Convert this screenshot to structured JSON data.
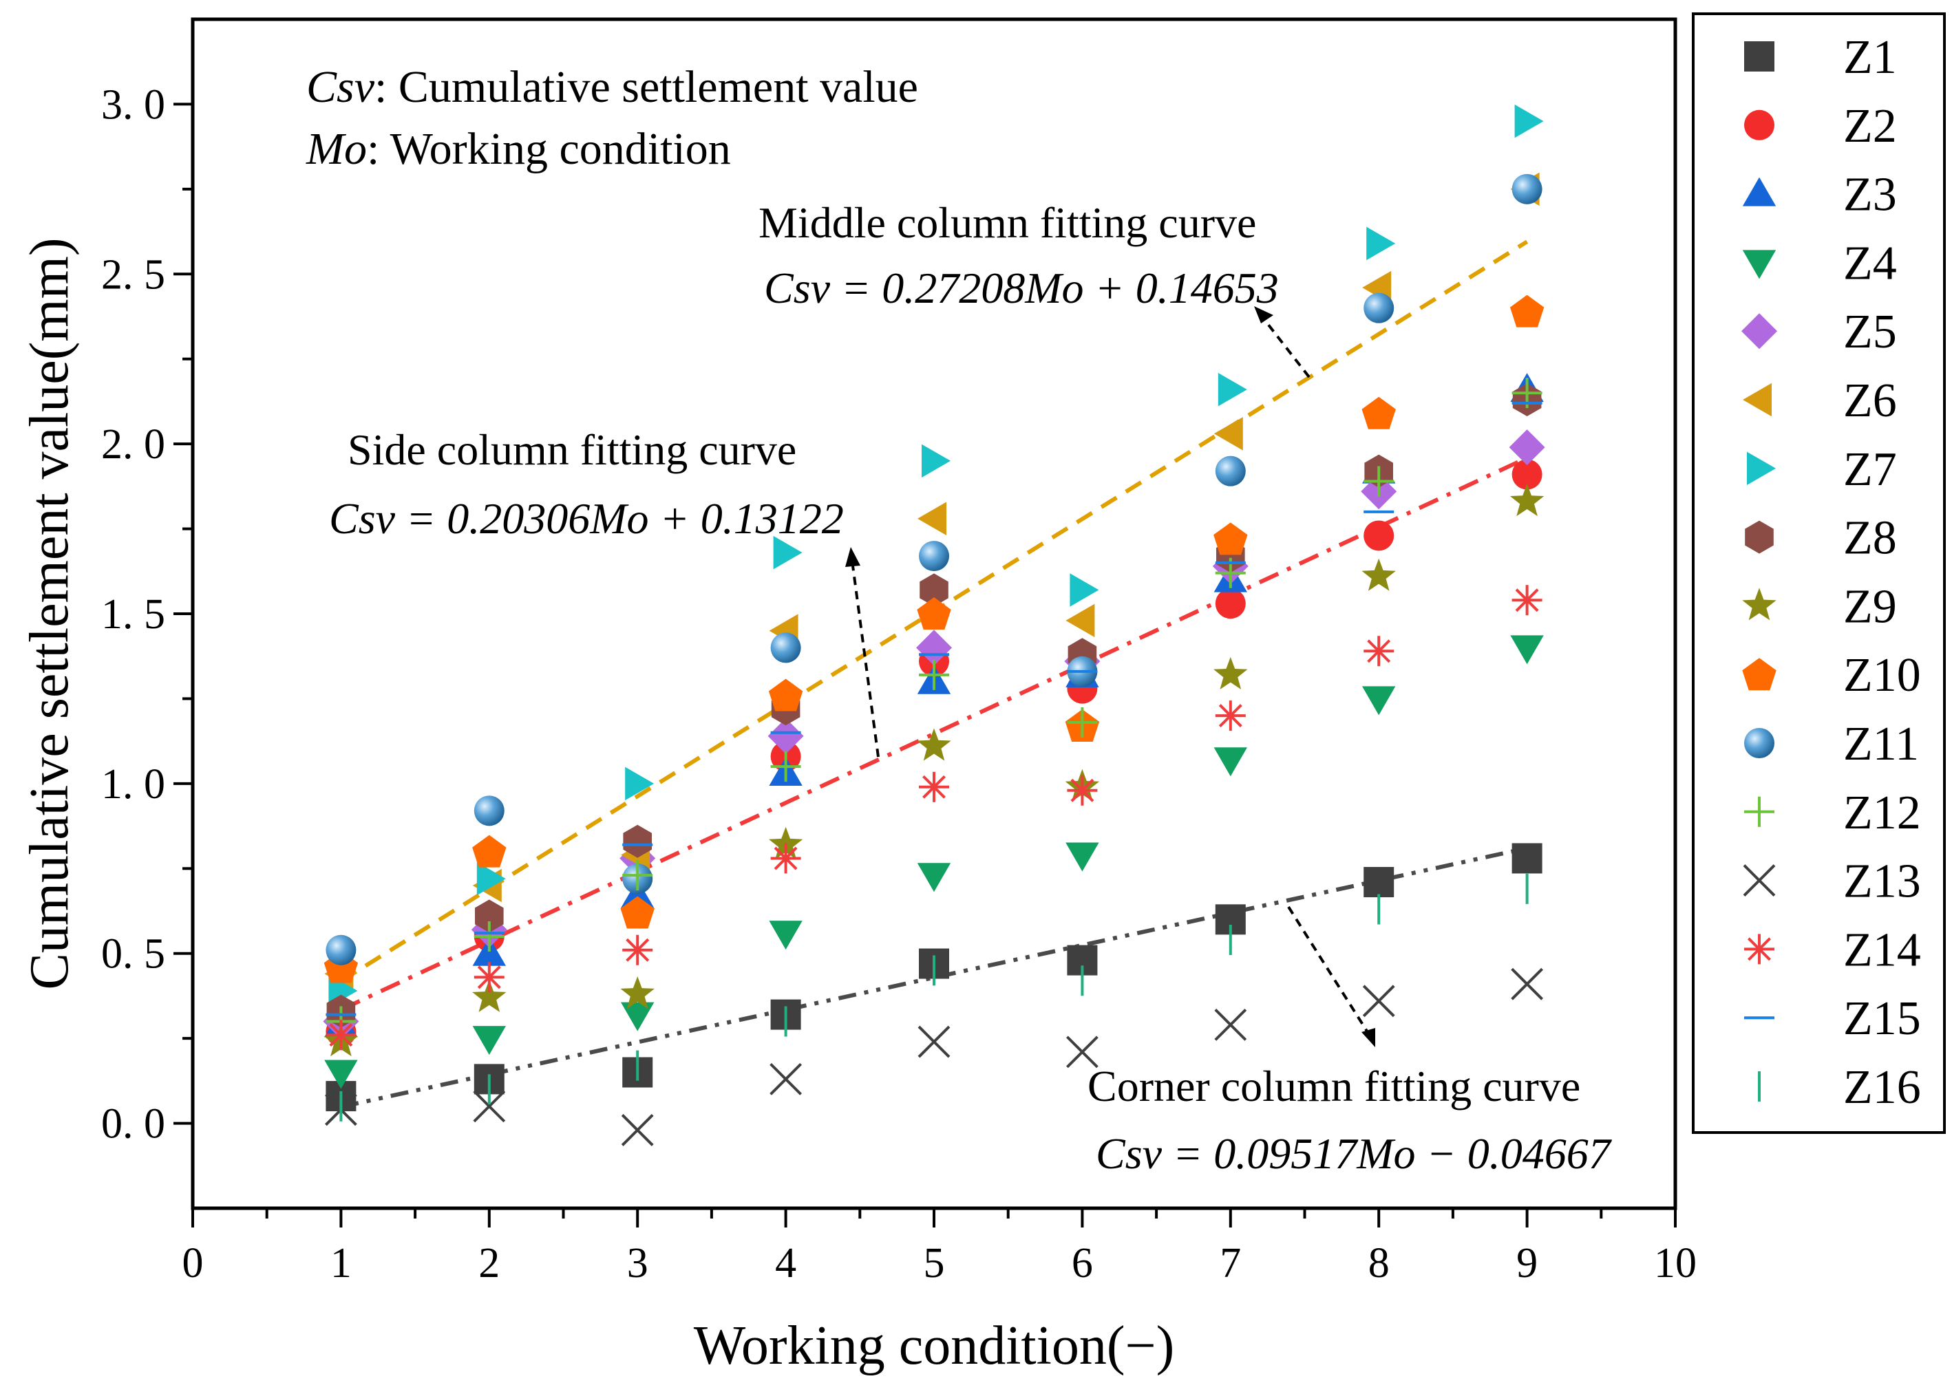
{
  "chart_data": {
    "type": "scatter",
    "xlabel": "Working condition(−)",
    "ylabel": "Cumulative settlement value(mm)",
    "xlim": [
      0,
      10
    ],
    "ylim": [
      -0.25,
      3.25
    ],
    "x_ticks": [
      "0",
      "1",
      "2",
      "3",
      "4",
      "5",
      "6",
      "7",
      "8",
      "9",
      "10"
    ],
    "y_ticks": [
      "0. 0",
      "0. 5",
      "1. 0",
      "1. 5",
      "2. 0",
      "2. 5",
      "3. 0"
    ],
    "x": [
      1,
      2,
      3,
      4,
      5,
      6,
      7,
      8,
      9
    ],
    "series": [
      {
        "name": "Z1",
        "marker": "square",
        "color": "#3f3f3f",
        "values": [
          0.08,
          0.13,
          0.15,
          0.32,
          0.47,
          0.48,
          0.6,
          0.71,
          0.78
        ]
      },
      {
        "name": "Z2",
        "marker": "circle",
        "color": "#f22b2b",
        "values": [
          0.27,
          0.55,
          0.63,
          1.08,
          1.36,
          1.28,
          1.53,
          1.73,
          1.91
        ]
      },
      {
        "name": "Z3",
        "marker": "triangle-up",
        "color": "#1565d8",
        "values": [
          0.29,
          0.5,
          0.67,
          1.03,
          1.3,
          1.32,
          1.6,
          1.92,
          2.16
        ]
      },
      {
        "name": "Z4",
        "marker": "triangle-down",
        "color": "#12a060",
        "values": [
          0.15,
          0.25,
          0.32,
          0.56,
          0.73,
          0.79,
          1.07,
          1.25,
          1.4
        ]
      },
      {
        "name": "Z5",
        "marker": "diamond",
        "color": "#b169e0",
        "values": [
          0.3,
          0.57,
          0.78,
          1.14,
          1.4,
          1.36,
          1.64,
          1.86,
          1.99
        ]
      },
      {
        "name": "Z6",
        "marker": "triangle-left",
        "color": "#d89b10",
        "values": [
          0.44,
          0.7,
          0.79,
          1.45,
          1.78,
          1.48,
          2.03,
          2.46,
          2.75
        ]
      },
      {
        "name": "Z7",
        "marker": "triangle-right",
        "color": "#19c3c8",
        "values": [
          0.39,
          0.72,
          1.0,
          1.68,
          1.95,
          1.57,
          2.16,
          2.59,
          2.95
        ]
      },
      {
        "name": "Z8",
        "marker": "hexagon",
        "color": "#8c4c46",
        "values": [
          0.33,
          0.61,
          0.83,
          1.22,
          1.57,
          1.38,
          1.67,
          1.92,
          2.13
        ]
      },
      {
        "name": "Z9",
        "marker": "star",
        "color": "#8a8a12",
        "values": [
          0.24,
          0.37,
          0.38,
          0.82,
          1.11,
          0.99,
          1.32,
          1.61,
          1.83
        ]
      },
      {
        "name": "Z10",
        "marker": "pentagon",
        "color": "#ff6a00",
        "values": [
          0.46,
          0.8,
          0.62,
          1.26,
          1.5,
          1.17,
          1.72,
          2.09,
          2.39
        ]
      },
      {
        "name": "Z11",
        "marker": "sphere",
        "color": "#4a96cc",
        "values": [
          0.51,
          0.92,
          0.72,
          1.4,
          1.67,
          1.33,
          1.92,
          2.4,
          2.75
        ]
      },
      {
        "name": "Z12",
        "marker": "plus",
        "color": "#6cc33a",
        "values": [
          0.3,
          0.55,
          0.73,
          1.05,
          1.32,
          1.18,
          1.62,
          1.89,
          2.15
        ]
      },
      {
        "name": "Z13",
        "marker": "x",
        "color": "#3f3f3f",
        "values": [
          0.04,
          0.05,
          -0.02,
          0.13,
          0.24,
          0.21,
          0.29,
          0.36,
          0.41
        ]
      },
      {
        "name": "Z14",
        "marker": "asterisk",
        "color": "#ef3c3c",
        "values": [
          0.26,
          0.43,
          0.51,
          0.78,
          0.99,
          0.98,
          1.2,
          1.39,
          1.54
        ]
      },
      {
        "name": "Z15",
        "marker": "hline",
        "color": "#1a7fe0",
        "values": [
          0.32,
          0.56,
          0.82,
          1.15,
          1.38,
          1.33,
          1.65,
          1.8,
          2.12
        ]
      },
      {
        "name": "Z16",
        "marker": "vline",
        "color": "#20b080",
        "values": [
          0.05,
          0.1,
          0.17,
          0.3,
          0.45,
          0.42,
          0.54,
          0.63,
          0.69
        ]
      }
    ],
    "fits": [
      {
        "name": "middle",
        "slope": 0.27208,
        "intercept": 0.14653,
        "color": "#e0a000",
        "style": "dash",
        "x_range": [
          1,
          9
        ]
      },
      {
        "name": "side",
        "slope": 0.20306,
        "intercept": 0.13122,
        "color": "#f23a3a",
        "style": "dashdot",
        "x_range": [
          1,
          9
        ]
      },
      {
        "name": "corner",
        "slope": 0.09517,
        "intercept": -0.04667,
        "color": "#4a4a4a",
        "style": "dashdotdot",
        "x_range": [
          1,
          9
        ]
      }
    ],
    "annotations": {
      "csv_def_sym": "Csv",
      "csv_def_text": ": Cumulative settlement value",
      "mo_def_sym": "Mo",
      "mo_def_text": ": Working condition",
      "middle_title": "Middle column fitting curve",
      "middle_eq": "Csv = 0.27208Mo + 0.14653",
      "side_title": "Side column fitting curve",
      "side_eq": "Csv = 0.20306Mo + 0.13122",
      "corner_title": "Corner column fitting curve",
      "corner_eq": "Csv = 0.09517Mo − 0.04667"
    },
    "legend_position": "right-outside"
  }
}
